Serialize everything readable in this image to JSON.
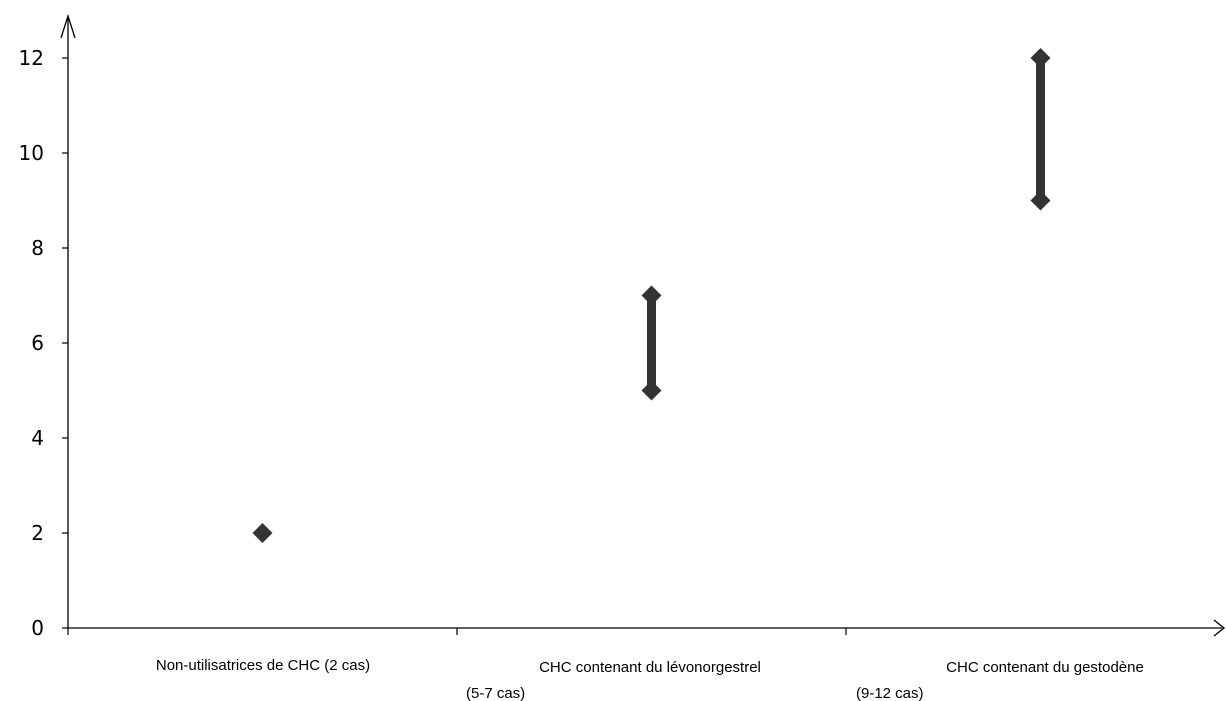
{
  "chart_data": {
    "type": "scatter",
    "ylim": [
      0,
      12.5
    ],
    "y_ticks": [
      0,
      2,
      4,
      6,
      8,
      10,
      12
    ],
    "categories": [
      {
        "line1": "Non-utilisatrices    de    CHC    (2 cas)",
        "line2": ""
      },
      {
        "line1": "CHC contenant du lévonorgestrel",
        "line2": "(5-7 cas)"
      },
      {
        "line1": "CHC contenant du gestodène",
        "line2": "(9-12 cas)"
      }
    ],
    "ranges": [
      {
        "low": 2,
        "high": 2
      },
      {
        "low": 5,
        "high": 7
      },
      {
        "low": 9,
        "high": 12
      }
    ],
    "grid": false,
    "colors": {
      "marker": "#333333",
      "axis": "#000000"
    }
  }
}
